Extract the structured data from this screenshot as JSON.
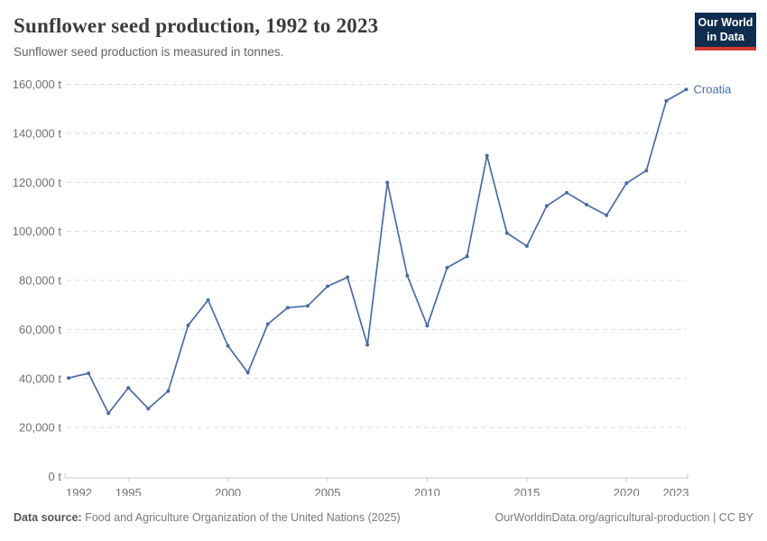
{
  "header": {
    "title": "Sunflower seed production, 1992 to 2023",
    "subtitle": "Sunflower seed production is measured in tonnes.",
    "logo": {
      "line1": "Our World",
      "line2": "in Data",
      "bg_color": "#0f2d4e",
      "bar_color": "#d43b32"
    }
  },
  "chart_data": {
    "type": "line",
    "title": "Sunflower seed production, 1992 to 2023",
    "ylabel": "",
    "xlabel": "",
    "unit": "t",
    "grid": "horizontal-dashed",
    "legend_position": "end-of-line-label",
    "xlim": [
      1992,
      2023
    ],
    "ylim": [
      0,
      160000
    ],
    "series": [
      {
        "name": "Croatia",
        "color": "#4c6ba3",
        "x": [
          1992,
          1993,
          1994,
          1995,
          1996,
          1997,
          1998,
          1999,
          2000,
          2001,
          2002,
          2003,
          2004,
          2005,
          2006,
          2007,
          2008,
          2009,
          2010,
          2011,
          2012,
          2013,
          2014,
          2015,
          2016,
          2017,
          2018,
          2019,
          2020,
          2021,
          2022,
          2023
        ],
        "values": [
          40200,
          42100,
          25800,
          36200,
          27700,
          34900,
          61700,
          72000,
          53300,
          42400,
          62200,
          68900,
          69600,
          77600,
          81300,
          53700,
          119900,
          81900,
          61500,
          85200,
          89800,
          130900,
          99300,
          94000,
          110400,
          115800,
          110900,
          106600,
          119700,
          124800,
          153300,
          157900
        ]
      }
    ],
    "yticks": [
      {
        "value": 0,
        "label": "0 t"
      },
      {
        "value": 20000,
        "label": "20,000 t"
      },
      {
        "value": 40000,
        "label": "40,000 t"
      },
      {
        "value": 60000,
        "label": "60,000 t"
      },
      {
        "value": 80000,
        "label": "80,000 t"
      },
      {
        "value": 100000,
        "label": "100,000 t"
      },
      {
        "value": 120000,
        "label": "120,000 t"
      },
      {
        "value": 140000,
        "label": "140,000 t"
      },
      {
        "value": 160000,
        "label": "160,000 t"
      }
    ],
    "xticks": [
      {
        "value": 1992,
        "label": "1992"
      },
      {
        "value": 1995,
        "label": "1995"
      },
      {
        "value": 2000,
        "label": "2000"
      },
      {
        "value": 2005,
        "label": "2005"
      },
      {
        "value": 2010,
        "label": "2010"
      },
      {
        "value": 2015,
        "label": "2015"
      },
      {
        "value": 2020,
        "label": "2020"
      },
      {
        "value": 2023,
        "label": "2023"
      }
    ],
    "colors": {
      "gridline": "#dcdcdc",
      "axis": "#c8c8c8",
      "tick_text": "#707070"
    }
  },
  "footer": {
    "datasource_label": "Data source:",
    "datasource_text": " Food and Agriculture Organization of the United Nations (2025)",
    "link": "OurWorldinData.org/agricultural-production | CC BY"
  }
}
